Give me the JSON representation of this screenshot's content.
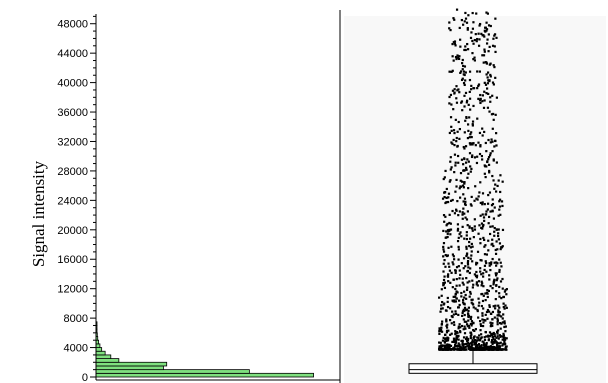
{
  "chart_data": [
    {
      "type": "bar",
      "orientation": "horizontal",
      "panel": "histogram",
      "ylabel": "Signal intensity",
      "ylim": [
        0,
        50000
      ],
      "yticks": [
        0,
        4000,
        8000,
        12000,
        16000,
        20000,
        24000,
        28000,
        32000,
        36000,
        40000,
        44000,
        48000
      ],
      "ytick_labels": [
        "0",
        "4000",
        "8000",
        "12000",
        "16000",
        "20000",
        "24000",
        "28000",
        "32000",
        "36000",
        "40000",
        "44000",
        "48000"
      ],
      "bin_width": 500,
      "bins": [
        {
          "y_start": 0,
          "y_end": 500,
          "count": 1000
        },
        {
          "y_start": 500,
          "y_end": 1000,
          "count": 705
        },
        {
          "y_start": 1000,
          "y_end": 1500,
          "count": 310
        },
        {
          "y_start": 1500,
          "y_end": 2000,
          "count": 325
        },
        {
          "y_start": 2000,
          "y_end": 2500,
          "count": 105
        },
        {
          "y_start": 2500,
          "y_end": 3000,
          "count": 68
        },
        {
          "y_start": 3000,
          "y_end": 3500,
          "count": 42
        },
        {
          "y_start": 3500,
          "y_end": 4000,
          "count": 26
        },
        {
          "y_start": 4000,
          "y_end": 4500,
          "count": 18
        },
        {
          "y_start": 4500,
          "y_end": 5000,
          "count": 12
        },
        {
          "y_start": 5000,
          "y_end": 5500,
          "count": 8
        },
        {
          "y_start": 5500,
          "y_end": 6000,
          "count": 6
        },
        {
          "y_start": 6000,
          "y_end": 6500,
          "count": 4
        },
        {
          "y_start": 6500,
          "y_end": 7000,
          "count": 3
        },
        {
          "y_start": 7000,
          "y_end": 7500,
          "count": 2
        }
      ],
      "xlim": [
        0,
        1000
      ],
      "bar_color": "#7fe07f",
      "grid": false
    },
    {
      "type": "scatter",
      "panel": "box-plot-with-outliers",
      "ylim": [
        0,
        50000
      ],
      "background": "#f8f8f8",
      "box": {
        "q1": 500,
        "median": 1000,
        "q3": 1800,
        "whisker_low": 0,
        "whisker_high": 3700
      },
      "outlier_min": 3700,
      "outlier_max": 50000,
      "outlier_count": 1300,
      "point_color": "#000000",
      "grid": false
    }
  ]
}
